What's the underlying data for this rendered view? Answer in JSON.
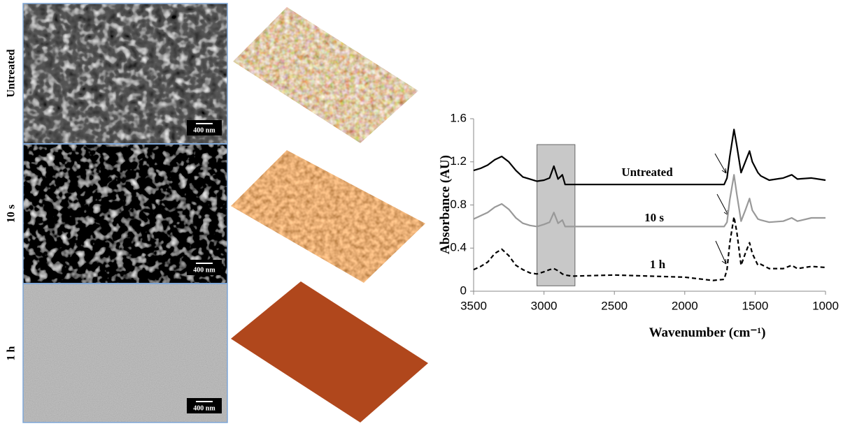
{
  "panels": [
    {
      "label": "Untreated",
      "scale_bar": "400 nm"
    },
    {
      "label": "10 s",
      "scale_bar": "400 nm"
    },
    {
      "label": "1 h",
      "scale_bar": "400 nm"
    }
  ],
  "chart_data": {
    "type": "line",
    "xlabel": "Wavenumber (cm⁻¹)",
    "ylabel": "Absorbance (AU)",
    "x": [
      3500,
      3450,
      3400,
      3350,
      3300,
      3250,
      3200,
      3150,
      3100,
      3050,
      3000,
      2960,
      2930,
      2900,
      2870,
      2850,
      2800,
      2500,
      2000,
      1800,
      1720,
      1700,
      1680,
      1650,
      1630,
      1600,
      1570,
      1540,
      1520,
      1480,
      1460,
      1400,
      1300,
      1240,
      1200,
      1100,
      1000
    ],
    "series": [
      {
        "name": "Untreated",
        "color": "#000000",
        "dash": false,
        "values": [
          1.12,
          1.14,
          1.17,
          1.22,
          1.25,
          1.2,
          1.12,
          1.06,
          1.04,
          1.02,
          1.03,
          1.05,
          1.16,
          1.04,
          1.08,
          0.99,
          0.99,
          0.99,
          0.99,
          0.99,
          0.99,
          1.05,
          1.25,
          1.5,
          1.35,
          1.1,
          1.2,
          1.3,
          1.2,
          1.1,
          1.07,
          1.03,
          1.05,
          1.08,
          1.04,
          1.05,
          1.03
        ]
      },
      {
        "name": "10 s",
        "color": "#999999",
        "dash": false,
        "values": [
          0.67,
          0.7,
          0.73,
          0.78,
          0.81,
          0.76,
          0.68,
          0.63,
          0.61,
          0.6,
          0.62,
          0.64,
          0.73,
          0.63,
          0.66,
          0.6,
          0.6,
          0.6,
          0.6,
          0.6,
          0.6,
          0.64,
          0.85,
          1.08,
          0.9,
          0.65,
          0.75,
          0.86,
          0.75,
          0.67,
          0.66,
          0.64,
          0.65,
          0.68,
          0.65,
          0.68,
          0.68
        ]
      },
      {
        "name": "1 h",
        "color": "#000000",
        "dash": true,
        "values": [
          0.2,
          0.23,
          0.27,
          0.35,
          0.39,
          0.33,
          0.24,
          0.2,
          0.17,
          0.16,
          0.18,
          0.2,
          0.21,
          0.19,
          0.16,
          0.15,
          0.14,
          0.15,
          0.13,
          0.1,
          0.11,
          0.2,
          0.45,
          0.69,
          0.55,
          0.24,
          0.35,
          0.45,
          0.35,
          0.24,
          0.25,
          0.21,
          0.21,
          0.24,
          0.21,
          0.23,
          0.22
        ]
      }
    ],
    "highlight": {
      "x": [
        3050,
        2780
      ],
      "y": [
        0.05,
        1.36
      ],
      "color": "#c8c8c8"
    },
    "xlim": [
      3500,
      1000
    ],
    "xticks": [
      3500,
      3000,
      2500,
      2000,
      1500,
      1000
    ],
    "ylim": [
      0,
      1.6
    ],
    "yticks": [
      0,
      0.4,
      0.8,
      1.2,
      1.6
    ]
  }
}
